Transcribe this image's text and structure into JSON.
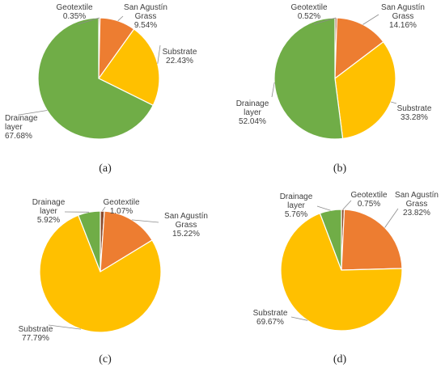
{
  "colors": {
    "Geotextile": "#8B4A2B",
    "San Agustín Grass": "#ED7D31",
    "Substrate": "#FFC000",
    "Drainage layer": "#70AD47",
    "leader": "#8c8c8c",
    "slice_border": "#ffffff"
  },
  "chart_data": [
    {
      "type": "pie",
      "caption": "(a)",
      "slices": [
        {
          "name": "Geotextile",
          "lines": [
            "Geotextile"
          ],
          "value": 0.35,
          "value_label": "0.35%"
        },
        {
          "name": "San Agustín Grass",
          "lines": [
            "San Agustín",
            "Grass"
          ],
          "value": 9.54,
          "value_label": "9.54%"
        },
        {
          "name": "Substrate",
          "lines": [
            "Substrate"
          ],
          "value": 22.43,
          "value_label": "22.43%"
        },
        {
          "name": "Drainage layer",
          "lines": [
            "Drainage",
            "layer"
          ],
          "value": 67.68,
          "value_label": "67.68%"
        }
      ]
    },
    {
      "type": "pie",
      "caption": "(b)",
      "slices": [
        {
          "name": "Geotextile",
          "lines": [
            "Geotextile"
          ],
          "value": 0.52,
          "value_label": "0.52%"
        },
        {
          "name": "San Agustín Grass",
          "lines": [
            "San Agustín",
            "Grass"
          ],
          "value": 14.16,
          "value_label": "14.16%"
        },
        {
          "name": "Substrate",
          "lines": [
            "Substrate"
          ],
          "value": 33.28,
          "value_label": "33.28%"
        },
        {
          "name": "Drainage layer",
          "lines": [
            "Drainage",
            "layer"
          ],
          "value": 52.04,
          "value_label": "52.04%"
        }
      ]
    },
    {
      "type": "pie",
      "caption": "(c)",
      "slices": [
        {
          "name": "Geotextile",
          "lines": [
            "Geotextile"
          ],
          "value": 1.07,
          "value_label": "1.07%"
        },
        {
          "name": "San Agustín Grass",
          "lines": [
            "San Agustín",
            "Grass"
          ],
          "value": 15.22,
          "value_label": "15.22%"
        },
        {
          "name": "Substrate",
          "lines": [
            "Substrate"
          ],
          "value": 77.79,
          "value_label": "77.79%"
        },
        {
          "name": "Drainage layer",
          "lines": [
            "Drainage",
            "layer"
          ],
          "value": 5.92,
          "value_label": "5.92%"
        }
      ]
    },
    {
      "type": "pie",
      "caption": "(d)",
      "slices": [
        {
          "name": "Geotextile",
          "lines": [
            "Geotextile"
          ],
          "value": 0.75,
          "value_label": "0.75%"
        },
        {
          "name": "San Agustín Grass",
          "lines": [
            "San Agustín",
            "Grass"
          ],
          "value": 23.82,
          "value_label": "23.82%"
        },
        {
          "name": "Substrate",
          "lines": [
            "Substrate"
          ],
          "value": 69.67,
          "value_label": "69.67%"
        },
        {
          "name": "Drainage layer",
          "lines": [
            "Drainage",
            "layer"
          ],
          "value": 5.76,
          "value_label": "5.76%"
        }
      ]
    }
  ]
}
